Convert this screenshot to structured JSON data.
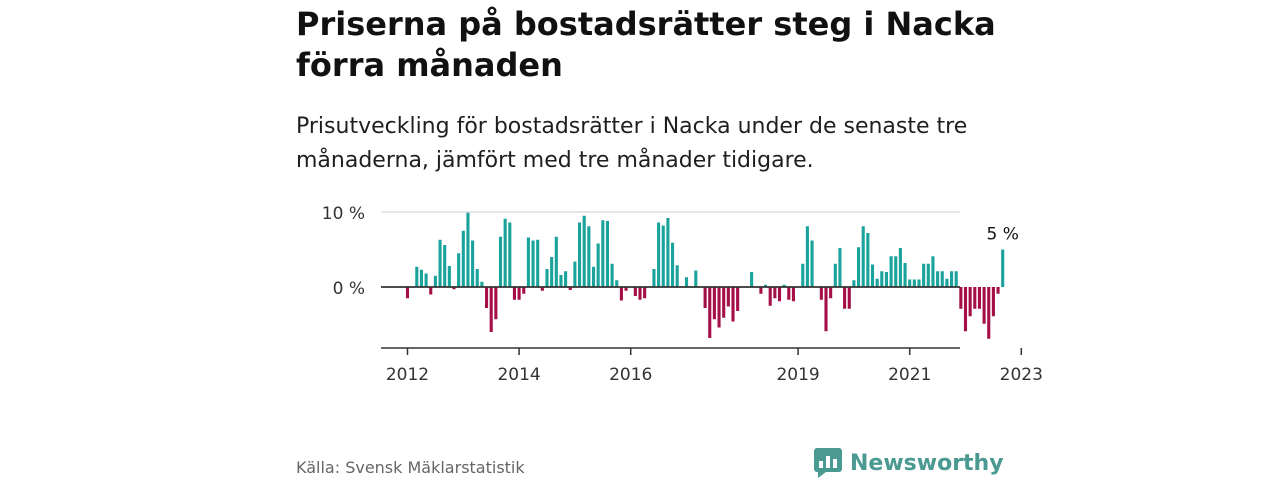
{
  "title": "Priserna på bostadsrätter steg i Nacka förra månaden",
  "subtitle": "Prisutveckling för bostadsrätter i Nacka under de senaste tre månaderna, jämfört med tre månader tidigare.",
  "source": "Källa: Svensk Mäklarstatistik",
  "brand": {
    "name": "Newsworthy",
    "icon": "newsworthy-logo-icon",
    "color": "#4a9a92"
  },
  "colors": {
    "positive": "#1aa39c",
    "negative": "#a50f47",
    "grid": "#dddddd",
    "axis": "#333333"
  },
  "chart_data": {
    "type": "bar",
    "ylabel": "",
    "ylim": [
      -8,
      10
    ],
    "y_ticks": [
      {
        "value": 10,
        "label": "10 %"
      },
      {
        "value": 0,
        "label": "0 %"
      }
    ],
    "x_ticks": [
      {
        "year": 2012,
        "label": "2012"
      },
      {
        "year": 2014,
        "label": "2014"
      },
      {
        "year": 2016,
        "label": "2016"
      },
      {
        "year": 2019,
        "label": "2019"
      },
      {
        "year": 2021,
        "label": "2021"
      },
      {
        "year": 2023,
        "label": "2023"
      }
    ],
    "start": "2012-01",
    "values": [
      -1.5,
      0,
      2.7,
      2.3,
      1.8,
      -1,
      1.5,
      6.3,
      5.6,
      2.8,
      -0.3,
      4.5,
      7.5,
      9.9,
      6.2,
      2.4,
      0.7,
      -2.8,
      -6,
      -4.3,
      6.7,
      9.1,
      8.6,
      -1.7,
      -1.7,
      -0.9,
      6.6,
      6.2,
      6.3,
      -0.5,
      2.4,
      4,
      6.7,
      1.6,
      2.1,
      -0.4,
      3.4,
      8.6,
      9.5,
      8.1,
      2.7,
      5.8,
      8.9,
      8.8,
      3.1,
      0.9,
      -1.8,
      -0.5,
      0,
      -1.2,
      -1.7,
      -1.5,
      0,
      2.4,
      8.6,
      8.2,
      9.2,
      5.9,
      2.9,
      0,
      1.3,
      0,
      2.2,
      0,
      -2.8,
      -6.8,
      -4.3,
      -5.4,
      -4.1,
      -2.6,
      -4.6,
      -3.2,
      0,
      0,
      2,
      0,
      -0.9,
      0.3,
      -2.5,
      -1.5,
      -1.9,
      0.3,
      -1.7,
      -1.9,
      0,
      3.1,
      8.1,
      6.2,
      0,
      -1.7,
      -5.9,
      -1.5,
      3.1,
      5.2,
      -2.9,
      -2.9,
      0.9,
      5.3,
      8.1,
      7.2,
      3,
      1.1,
      2.1,
      2,
      4.1,
      4.1,
      5.2,
      3.2,
      1,
      1,
      1,
      3.1,
      3.1,
      4.1,
      2.1,
      2.1,
      1.1,
      2.1,
      2.1,
      -2.9,
      -5.9,
      -3.9,
      -2.9,
      -2.9,
      -4.9,
      -6.9,
      -3.9,
      -0.9,
      5
    ],
    "annotations": [
      {
        "label": "5 %",
        "target": "last"
      }
    ]
  }
}
